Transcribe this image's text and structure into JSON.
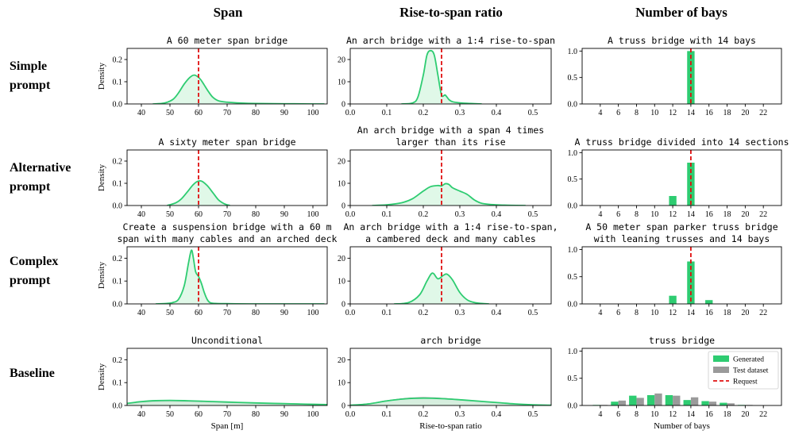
{
  "chart_data": {
    "type": "figure-grid",
    "column_headers": [
      "Span",
      "Rise-to-span ratio",
      "Number of bays"
    ],
    "row_labels": [
      [
        "Simple",
        "prompt"
      ],
      [
        "Alternative",
        "prompt"
      ],
      [
        "Complex",
        "prompt"
      ],
      [
        "Baseline"
      ]
    ],
    "colors": {
      "generated_line": "#2ecc71",
      "generated_fill": "#d5f5e0",
      "generated_bar": "#2ecc71",
      "test_bar": "#9a9a9a",
      "test_fill": "#bdbdbd",
      "request_line": "#e01010"
    },
    "columns": [
      {
        "type": "kde",
        "xlim": [
          35,
          105
        ],
        "ylim": [
          0,
          0.25
        ],
        "xticks": [
          40,
          50,
          60,
          70,
          80,
          90,
          100
        ],
        "yticks": [
          0,
          0.1,
          0.2
        ],
        "ytick_labels": [
          "0.0",
          "0.1",
          "0.2"
        ],
        "ylabel": "Density",
        "xlabel": "Span [m]"
      },
      {
        "type": "kde",
        "xlim": [
          0,
          0.55
        ],
        "ylim": [
          0,
          25
        ],
        "xticks": [
          0,
          0.1,
          0.2,
          0.3,
          0.4,
          0.5
        ],
        "xtick_labels": [
          "0.0",
          "0.1",
          "0.2",
          "0.3",
          "0.4",
          "0.5"
        ],
        "yticks": [
          0,
          10,
          20
        ],
        "ytick_labels": [
          "0",
          "10",
          "20"
        ],
        "xlabel": "Rise-to-span ratio"
      },
      {
        "type": "bar",
        "xlim": [
          2,
          24
        ],
        "ylim": [
          0,
          1.05
        ],
        "xticks": [
          4,
          6,
          8,
          10,
          12,
          14,
          16,
          18,
          20,
          22
        ],
        "yticks": [
          0,
          0.5,
          1.0
        ],
        "ytick_labels": [
          "0.0",
          "0.5",
          "1.0"
        ],
        "xlabel": "Number of bays"
      }
    ],
    "panels": [
      {
        "row": 0,
        "col": 0,
        "title": [
          "A 60 meter span bridge"
        ],
        "request": 60,
        "series": [
          {
            "name": "Generated",
            "x": [
              44,
              48,
              51,
              53,
              55,
              57,
              58.5,
              60,
              61,
              62,
              63.5,
              65,
              67,
              70,
              75,
              80,
              90,
              100,
              104
            ],
            "y": [
              0,
              0.004,
              0.02,
              0.05,
              0.09,
              0.12,
              0.13,
              0.12,
              0.105,
              0.085,
              0.055,
              0.03,
              0.014,
              0.008,
              0.004,
              0.002,
              0.001,
              0,
              0
            ]
          }
        ]
      },
      {
        "row": 0,
        "col": 1,
        "title": [
          "An arch bridge with a 1:4 rise-to-span"
        ],
        "request": 0.25,
        "series": [
          {
            "name": "Generated",
            "x": [
              0.14,
              0.17,
              0.185,
              0.2,
              0.21,
              0.22,
              0.23,
              0.24,
              0.25,
              0.26,
              0.27,
              0.28,
              0.3,
              0.33,
              0.36
            ],
            "y": [
              0,
              0.4,
              3,
              13,
              22,
              24,
              22,
              13,
              4,
              4,
              2,
              1,
              0.5,
              0.2,
              0
            ]
          }
        ]
      },
      {
        "row": 0,
        "col": 2,
        "title": [
          "A truss bridge with 14 bays"
        ],
        "request": 14,
        "bars": [
          {
            "x": 14,
            "value": 1.0
          }
        ]
      },
      {
        "row": 1,
        "col": 0,
        "title": [
          "A sixty meter span bridge"
        ],
        "request": 60,
        "series": [
          {
            "name": "Generated",
            "x": [
              49,
              52,
              54,
              56,
              58,
              59.5,
              61,
              63,
              65,
              67,
              69,
              71
            ],
            "y": [
              0,
              0.012,
              0.03,
              0.06,
              0.092,
              0.108,
              0.11,
              0.09,
              0.058,
              0.025,
              0.008,
              0
            ]
          }
        ]
      },
      {
        "row": 1,
        "col": 1,
        "title": [
          "An arch bridge with a span 4 times",
          "larger than its rise"
        ],
        "request": 0.25,
        "series": [
          {
            "name": "Generated",
            "x": [
              0.06,
              0.1,
              0.14,
              0.17,
              0.2,
              0.22,
              0.24,
              0.25,
              0.26,
              0.27,
              0.28,
              0.3,
              0.32,
              0.34,
              0.36,
              0.4,
              0.44,
              0.48
            ],
            "y": [
              0,
              0.3,
              1.2,
              3,
              6.5,
              8.5,
              9,
              8.8,
              9.8,
              9.5,
              8,
              6.5,
              5,
              2.5,
              1,
              0.3,
              0.1,
              0
            ]
          }
        ]
      },
      {
        "row": 1,
        "col": 2,
        "title": [
          "A truss bridge divided into 14 sections"
        ],
        "request": 14,
        "bars": [
          {
            "x": 12,
            "value": 0.18
          },
          {
            "x": 14,
            "value": 0.81
          }
        ]
      },
      {
        "row": 2,
        "col": 0,
        "title": [
          "Create a suspension bridge with a 60 m",
          "span with many cables and an arched deck"
        ],
        "request": 60,
        "series": [
          {
            "name": "Generated",
            "x": [
              45,
              49,
              51,
              53,
              55,
              56.5,
              57.5,
              58.2,
              59,
              60,
              61,
              62,
              63,
              64,
              66,
              70,
              80,
              104
            ],
            "y": [
              0,
              0.002,
              0.006,
              0.02,
              0.08,
              0.18,
              0.235,
              0.2,
              0.14,
              0.12,
              0.09,
              0.05,
              0.02,
              0.006,
              0.002,
              0.001,
              0,
              0
            ]
          }
        ]
      },
      {
        "row": 2,
        "col": 1,
        "title": [
          "An arch bridge with a 1:4 rise-to-span,",
          "a cambered deck and many cables"
        ],
        "request": 0.25,
        "series": [
          {
            "name": "Generated",
            "x": [
              0.12,
              0.16,
              0.19,
              0.21,
              0.225,
              0.24,
              0.255,
              0.265,
              0.28,
              0.3,
              0.32,
              0.34,
              0.36,
              0.38
            ],
            "y": [
              0,
              0.6,
              4,
              10,
              13.5,
              11,
              12.5,
              13,
              10.5,
              5,
              1.8,
              0.6,
              0.2,
              0
            ]
          }
        ]
      },
      {
        "row": 2,
        "col": 2,
        "title": [
          "A 50 meter span parker truss bridge",
          "with leaning trusses and 14 bays"
        ],
        "request": 14,
        "bars": [
          {
            "x": 12,
            "value": 0.15
          },
          {
            "x": 14,
            "value": 0.78
          },
          {
            "x": 16,
            "value": 0.07
          }
        ]
      },
      {
        "row": 3,
        "col": 0,
        "title": [
          "Unconditional"
        ],
        "series": [
          {
            "name": "Test dataset",
            "x": [
              35,
              38,
              40,
              45,
              50,
              55,
              60,
              70,
              80,
              90,
              100,
              105
            ],
            "y": [
              0.008,
              0.012,
              0.015,
              0.018,
              0.019,
              0.018,
              0.017,
              0.013,
              0.01,
              0.008,
              0.005,
              0.004
            ]
          },
          {
            "name": "Generated",
            "x": [
              35,
              38,
              40,
              45,
              50,
              55,
              60,
              70,
              80,
              90,
              100,
              105
            ],
            "y": [
              0.009,
              0.014,
              0.017,
              0.021,
              0.022,
              0.021,
              0.019,
              0.015,
              0.011,
              0.008,
              0.005,
              0.004
            ]
          }
        ]
      },
      {
        "row": 3,
        "col": 1,
        "title": [
          "arch bridge"
        ],
        "series": [
          {
            "name": "Test dataset",
            "x": [
              0,
              0.05,
              0.1,
              0.15,
              0.2,
              0.25,
              0.3,
              0.35,
              0.4,
              0.45,
              0.5,
              0.55
            ],
            "y": [
              0.1,
              0.7,
              2,
              3,
              3.4,
              3.1,
              2.5,
              1.8,
              1.2,
              0.6,
              0.25,
              0.1
            ]
          },
          {
            "name": "Generated",
            "x": [
              0,
              0.05,
              0.1,
              0.15,
              0.2,
              0.25,
              0.3,
              0.35,
              0.4,
              0.45,
              0.5,
              0.55
            ],
            "y": [
              0.1,
              0.7,
              2,
              2.9,
              3.2,
              3,
              2.5,
              1.9,
              1.3,
              0.7,
              0.3,
              0.1
            ]
          }
        ]
      },
      {
        "row": 3,
        "col": 2,
        "title": [
          "truss bridge"
        ],
        "bars": [
          {
            "x": 4,
            "generated": 0.01,
            "test": 0.01
          },
          {
            "x": 6,
            "generated": 0.07,
            "test": 0.09
          },
          {
            "x": 8,
            "generated": 0.18,
            "test": 0.14
          },
          {
            "x": 10,
            "generated": 0.19,
            "test": 0.22
          },
          {
            "x": 12,
            "generated": 0.19,
            "test": 0.18
          },
          {
            "x": 14,
            "generated": 0.1,
            "test": 0.15
          },
          {
            "x": 16,
            "generated": 0.08,
            "test": 0.07
          },
          {
            "x": 18,
            "generated": 0.05,
            "test": 0.04
          },
          {
            "x": 20,
            "generated": 0.01,
            "test": 0.01
          },
          {
            "x": 22,
            "generated": 0,
            "test": 0
          }
        ]
      }
    ],
    "legend": {
      "position": "upper-right of bottom-right panel",
      "entries": [
        "Generated",
        "Test dataset",
        "Request"
      ]
    }
  }
}
